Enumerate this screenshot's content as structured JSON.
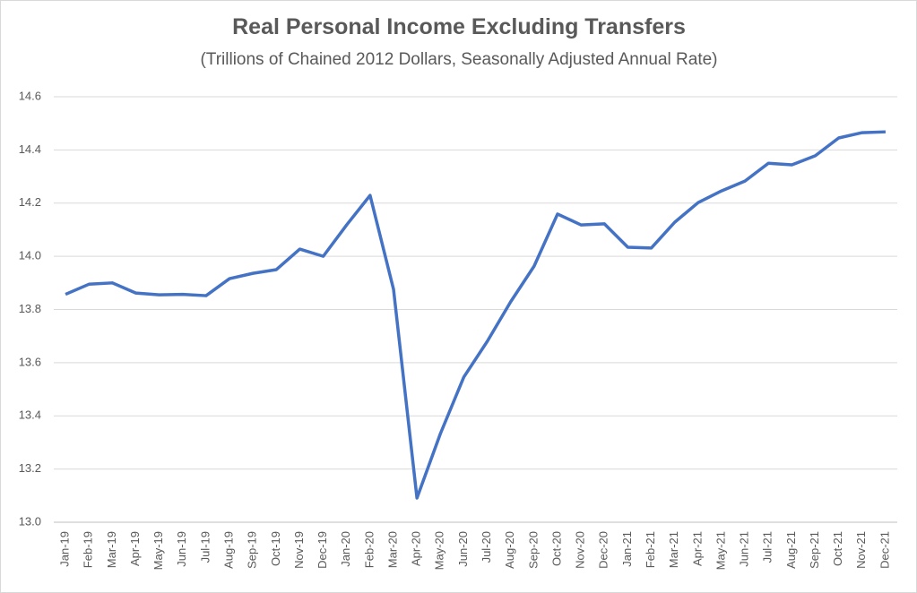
{
  "chart_data": {
    "type": "line",
    "title": "Real Personal Income Excluding Transfers",
    "subtitle": "(Trillions of Chained 2012 Dollars, Seasonally Adjusted Annual Rate)",
    "categories": [
      "Jan-19",
      "Feb-19",
      "Mar-19",
      "Apr-19",
      "May-19",
      "Jun-19",
      "Jul-19",
      "Aug-19",
      "Sep-19",
      "Oct-19",
      "Nov-19",
      "Dec-19",
      "Jan-20",
      "Feb-20",
      "Mar-20",
      "Apr-20",
      "May-20",
      "Jun-20",
      "Jul-20",
      "Aug-20",
      "Sep-20",
      "Oct-20",
      "Nov-20",
      "Dec-20",
      "Jan-21",
      "Feb-21",
      "Mar-21",
      "Apr-21",
      "May-21",
      "Jun-21",
      "Jul-21",
      "Aug-21",
      "Sep-21",
      "Oct-21",
      "Nov-21",
      "Dec-21"
    ],
    "series": [
      {
        "name": "Real Personal Income Excluding Transfers",
        "color": "#4472c4",
        "values": [
          13.857,
          13.895,
          13.9,
          13.862,
          13.855,
          13.857,
          13.852,
          13.916,
          13.936,
          13.95,
          14.027,
          14.0,
          14.118,
          14.229,
          13.876,
          13.091,
          13.333,
          13.546,
          13.68,
          13.829,
          13.963,
          14.159,
          14.118,
          14.122,
          14.034,
          14.031,
          14.128,
          14.202,
          14.246,
          14.283,
          14.35,
          14.344,
          14.378,
          14.445,
          14.465,
          14.468
        ]
      }
    ],
    "ylim": [
      13.0,
      14.6
    ],
    "yticks": [
      {
        "value": 13.0,
        "label": "13.0"
      },
      13.2,
      13.4,
      13.6,
      13.8,
      {
        "value": 14.0,
        "label": "14.0"
      },
      14.2,
      14.4,
      14.6
    ],
    "grid": true
  }
}
